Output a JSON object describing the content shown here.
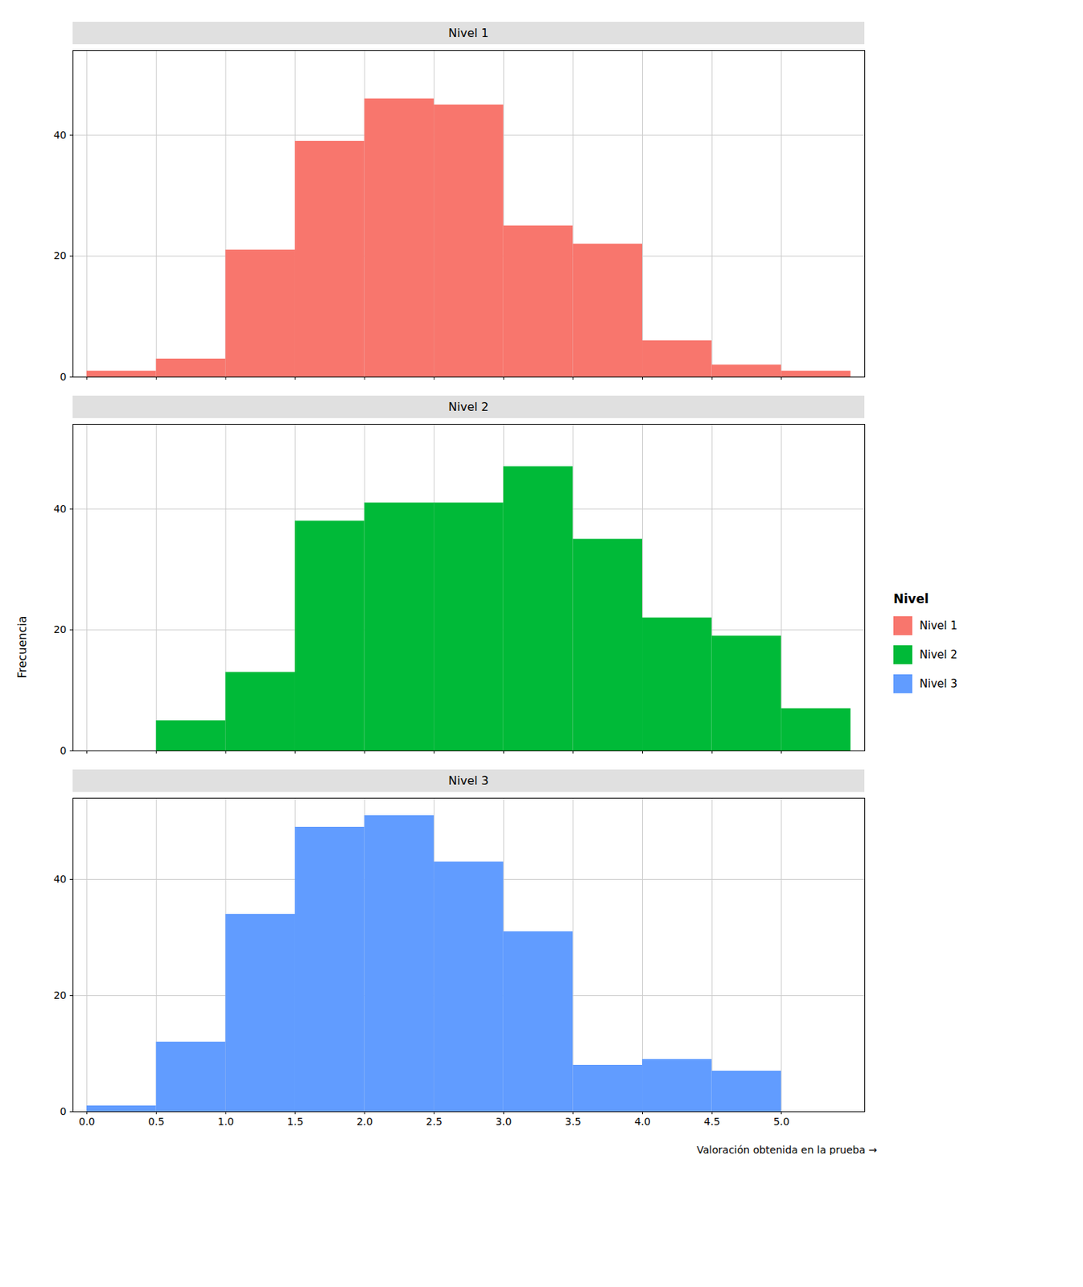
{
  "chart_data": {
    "type": "histogram",
    "xlabel": "Valoración obtenida en la prueba",
    "ylabel": "Frecuencia",
    "legend_title": "Nivel",
    "bins": [
      0.0,
      0.5,
      1.0,
      1.5,
      2.0,
      2.5,
      3.0,
      3.5,
      4.0,
      4.5,
      5.0,
      5.5
    ],
    "series": [
      {
        "name": "Nivel 1",
        "color": "#F8766D",
        "values": [
          1,
          3,
          21,
          39,
          46,
          45,
          25,
          22,
          6,
          2,
          1
        ]
      },
      {
        "name": "Nivel 2",
        "color": "#00BA38",
        "values": [
          0,
          5,
          13,
          38,
          41,
          41,
          47,
          35,
          22,
          19,
          7
        ]
      },
      {
        "name": "Nivel 3",
        "color": "#619CFF",
        "values": [
          1,
          12,
          34,
          49,
          51,
          43,
          31,
          8,
          9,
          7,
          0
        ]
      }
    ],
    "xlim": [
      -0.1,
      5.6
    ],
    "xticks": [
      0,
      0.5,
      1,
      1.5,
      2,
      2.5,
      3,
      3.5,
      4,
      4.5,
      5
    ],
    "ylim": [
      0,
      54
    ],
    "yticks": [
      0,
      20,
      40
    ],
    "grid": true,
    "legend": "right"
  }
}
